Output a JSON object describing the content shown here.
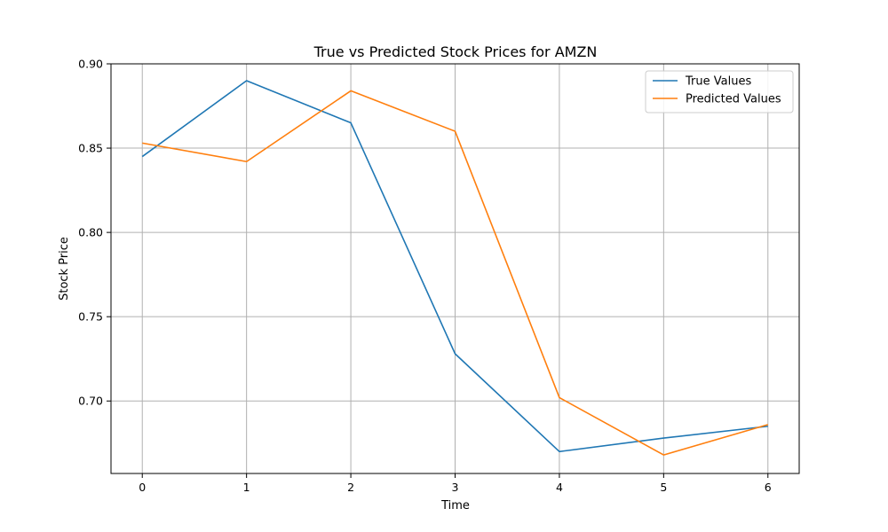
{
  "chart_data": {
    "type": "line",
    "title": "True vs Predicted Stock Prices for AMZN",
    "xlabel": "Time",
    "ylabel": "Stock Price",
    "x": [
      0,
      1,
      2,
      3,
      4,
      5,
      6
    ],
    "xticks": [
      0,
      1,
      2,
      3,
      4,
      5,
      6
    ],
    "yticks": [
      0.7,
      0.75,
      0.8,
      0.85,
      0.9
    ],
    "xlim": [
      -0.3,
      6.3
    ],
    "ylim": [
      0.657,
      0.9
    ],
    "grid": true,
    "legend_position": "top-right",
    "series": [
      {
        "name": "True Values",
        "color": "#1f77b4",
        "values": [
          0.845,
          0.89,
          0.865,
          0.728,
          0.67,
          0.678,
          0.685
        ]
      },
      {
        "name": "Predicted Values",
        "color": "#ff7f0e",
        "values": [
          0.853,
          0.842,
          0.884,
          0.86,
          0.702,
          0.668,
          0.686
        ]
      }
    ]
  }
}
